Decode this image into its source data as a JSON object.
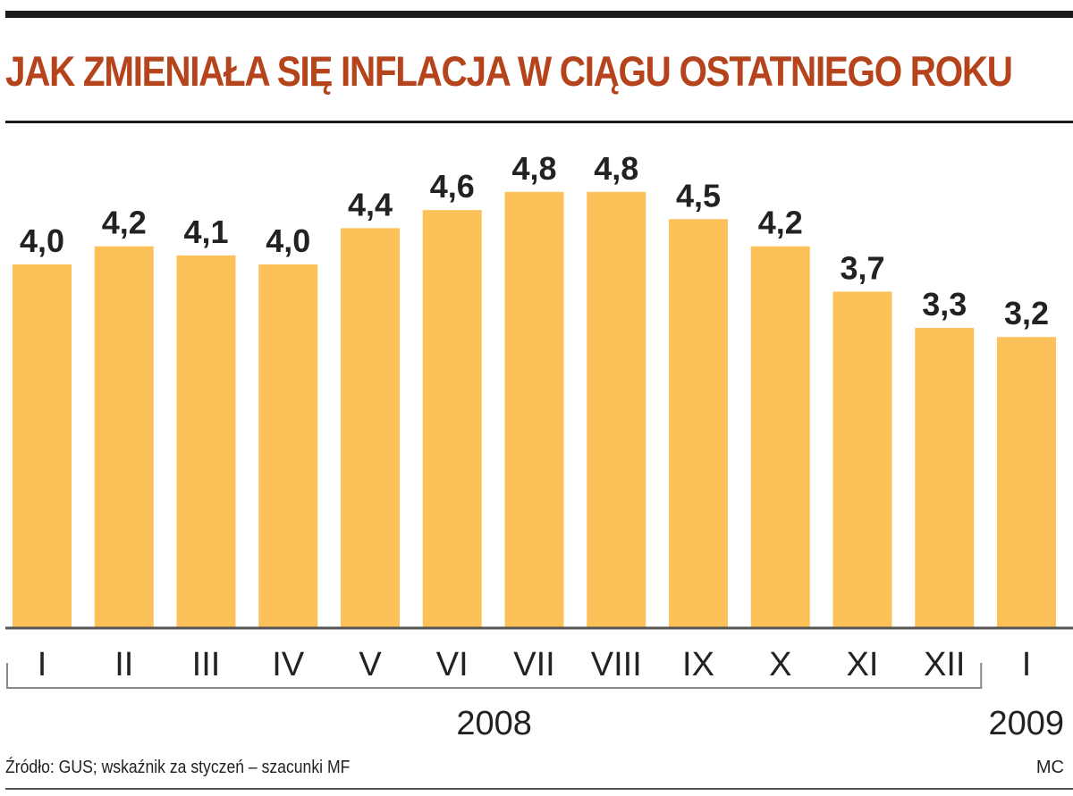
{
  "chart_data": {
    "type": "bar",
    "title": "JAK ZMIENIAŁA SIĘ INFLACJA W CIĄGU OSTATNIEGO ROKU",
    "categories": [
      "I",
      "II",
      "III",
      "IV",
      "V",
      "VI",
      "VII",
      "VIII",
      "IX",
      "X",
      "XI",
      "XII",
      "I"
    ],
    "value_labels": [
      "4,0",
      "4,2",
      "4,1",
      "4,0",
      "4,4",
      "4,6",
      "4,8",
      "4,8",
      "4,5",
      "4,2",
      "3,7",
      "3,3",
      "3,2"
    ],
    "values": [
      4.0,
      4.2,
      4.1,
      4.0,
      4.4,
      4.6,
      4.8,
      4.8,
      4.5,
      4.2,
      3.7,
      3.3,
      3.2
    ],
    "year_groups": [
      {
        "label": "2008",
        "from": 0,
        "to": 11
      },
      {
        "label": "2009",
        "from": 12,
        "to": 12
      }
    ],
    "xlabel": "",
    "ylabel": "",
    "ylim": [
      0,
      4.8
    ],
    "grid": false,
    "bar_color": "#fdc15a",
    "title_color": "#b5431c"
  },
  "source": "Źródło: GUS; wskaźnik za styczeń – szacunki MF",
  "credit": "MC"
}
